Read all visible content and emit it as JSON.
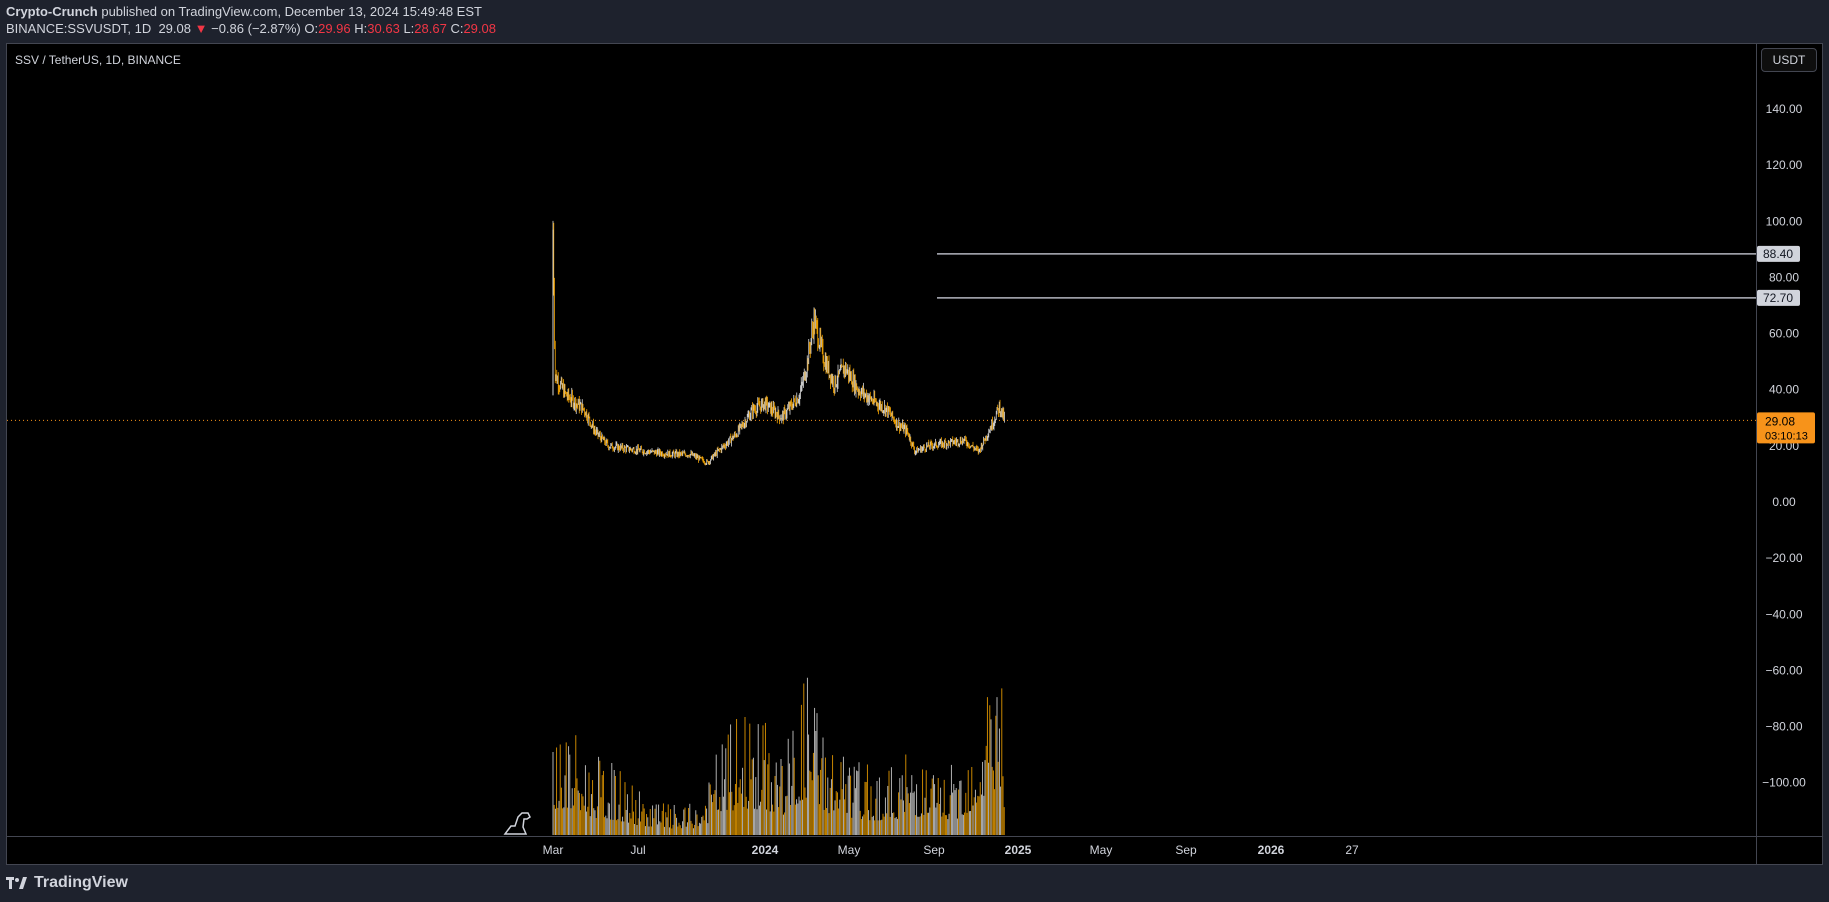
{
  "header": {
    "author": "Crypto-Crunch",
    "published_text": "published on TradingView.com, December 13, 2024 15:49:48 EST",
    "symbol": "BINANCE:SSVUSDT, 1D",
    "last": "29.08",
    "change_arrow": "▼",
    "change": "−0.86 (−2.87%)",
    "o_label": "O:",
    "o_value": "29.96",
    "h_label": "H:",
    "h_value": "30.63",
    "l_label": "L:",
    "l_value": "28.67",
    "c_label": "C:",
    "c_value": "29.08"
  },
  "chart": {
    "title": "SSV / TetherUS, 1D, BINANCE",
    "currency": "USDT",
    "last_price_label": "29.08",
    "countdown_label": "03:10:13",
    "level_labels": [
      "88.40",
      "72.70"
    ],
    "brand": "TradingView",
    "watermark_icon": "dinosaur-icon",
    "colors": {
      "background": "#000000",
      "panel": "#1e222d",
      "candle": "#f7a600",
      "candle_alt": "#d9d9d9",
      "last_price_badge": "#f7931a",
      "level_line": "#b2b5be"
    }
  },
  "chart_data": {
    "type": "candlestick",
    "title": "SSV / TetherUS, 1D, BINANCE",
    "y_axis_ticks": [
      "140.00",
      "120.00",
      "100.00",
      "80.00",
      "60.00",
      "40.00",
      "20.00",
      "0.00",
      "−20.00",
      "−40.00",
      "−60.00",
      "−80.00",
      "−100.00"
    ],
    "x_axis_ticks": [
      "Mar",
      "Jul",
      "2024",
      "May",
      "Sep",
      "2025",
      "May",
      "Sep",
      "2026",
      "27"
    ],
    "ylim": [
      -117,
      152
    ],
    "horizontal_levels": [
      88.4,
      72.7
    ],
    "last_price": 29.08,
    "price_path": [
      {
        "date": "2023-03-01",
        "close": 97
      },
      {
        "date": "2023-03-04",
        "close": 45
      },
      {
        "date": "2023-03-20",
        "close": 38
      },
      {
        "date": "2023-04-15",
        "close": 33
      },
      {
        "date": "2023-05-01",
        "close": 25
      },
      {
        "date": "2023-05-20",
        "close": 20
      },
      {
        "date": "2023-06-15",
        "close": 19
      },
      {
        "date": "2023-07-15",
        "close": 18
      },
      {
        "date": "2023-08-20",
        "close": 17
      },
      {
        "date": "2023-09-15",
        "close": 17
      },
      {
        "date": "2023-10-10",
        "close": 14
      },
      {
        "date": "2023-10-25",
        "close": 18
      },
      {
        "date": "2023-11-20",
        "close": 24
      },
      {
        "date": "2023-12-15",
        "close": 33
      },
      {
        "date": "2024-01-01",
        "close": 35
      },
      {
        "date": "2024-01-25",
        "close": 30
      },
      {
        "date": "2024-02-20",
        "close": 38
      },
      {
        "date": "2024-03-01",
        "close": 48
      },
      {
        "date": "2024-03-12",
        "close": 65
      },
      {
        "date": "2024-03-25",
        "close": 52
      },
      {
        "date": "2024-04-10",
        "close": 42
      },
      {
        "date": "2024-04-25",
        "close": 48
      },
      {
        "date": "2024-05-15",
        "close": 40
      },
      {
        "date": "2024-06-05",
        "close": 36
      },
      {
        "date": "2024-06-25",
        "close": 33
      },
      {
        "date": "2024-07-10",
        "close": 28
      },
      {
        "date": "2024-07-25",
        "close": 25
      },
      {
        "date": "2024-08-05",
        "close": 18
      },
      {
        "date": "2024-08-25",
        "close": 20
      },
      {
        "date": "2024-09-20",
        "close": 21
      },
      {
        "date": "2024-10-15",
        "close": 22
      },
      {
        "date": "2024-11-05",
        "close": 18
      },
      {
        "date": "2024-11-25",
        "close": 28
      },
      {
        "date": "2024-12-05",
        "close": 34
      },
      {
        "date": "2024-12-13",
        "close": 29.08
      }
    ],
    "volume_profile": [
      {
        "date": "2023-03-01",
        "volume": 0.55
      },
      {
        "date": "2023-04-01",
        "volume": 0.45
      },
      {
        "date": "2023-05-01",
        "volume": 0.35
      },
      {
        "date": "2023-06-01",
        "volume": 0.3
      },
      {
        "date": "2023-07-01",
        "volume": 0.2
      },
      {
        "date": "2023-08-01",
        "volume": 0.15
      },
      {
        "date": "2023-09-01",
        "volume": 0.12
      },
      {
        "date": "2023-10-01",
        "volume": 0.15
      },
      {
        "date": "2023-11-01",
        "volume": 0.45
      },
      {
        "date": "2023-12-01",
        "volume": 0.55
      },
      {
        "date": "2024-01-01",
        "volume": 0.5
      },
      {
        "date": "2024-02-01",
        "volume": 0.4
      },
      {
        "date": "2024-03-01",
        "volume": 0.75
      },
      {
        "date": "2024-04-01",
        "volume": 0.45
      },
      {
        "date": "2024-05-01",
        "volume": 0.35
      },
      {
        "date": "2024-06-01",
        "volume": 0.3
      },
      {
        "date": "2024-07-01",
        "volume": 0.3
      },
      {
        "date": "2024-08-01",
        "volume": 0.4
      },
      {
        "date": "2024-09-01",
        "volume": 0.3
      },
      {
        "date": "2024-10-01",
        "volume": 0.3
      },
      {
        "date": "2024-11-01",
        "volume": 0.55
      },
      {
        "date": "2024-12-05",
        "volume": 1.0
      },
      {
        "date": "2024-12-13",
        "volume": 0.5
      }
    ]
  }
}
